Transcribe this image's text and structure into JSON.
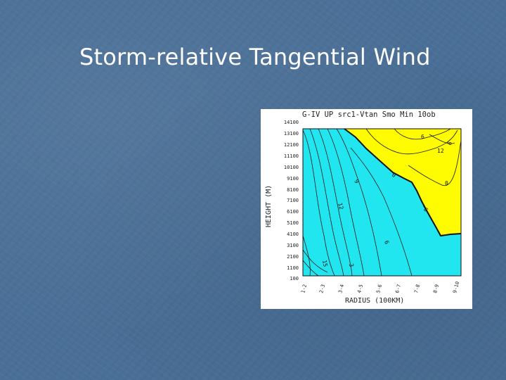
{
  "slide": {
    "title": "Storm-relative Tangential Wind"
  },
  "figure": {
    "header": "G-IV UP src1-Vtan Smo Min 10ob",
    "ylabel": "HEIGHT (M)",
    "xlabel": "RADIUS (100KM)",
    "y_ticks": [
      "14100",
      "13100",
      "12100",
      "11100",
      "10100",
      "9100",
      "8100",
      "7100",
      "6100",
      "5100",
      "4100",
      "3100",
      "2100",
      "1100",
      "100"
    ],
    "x_ticks": [
      "1-2",
      "2-3",
      "3-4",
      "4-5",
      "5-6",
      "6-7",
      "7-8",
      "8-9",
      "9-10"
    ],
    "contour_labels": [
      "15",
      "12",
      "9",
      "6",
      "3",
      "0",
      "-6",
      "6",
      "12",
      "6",
      "0"
    ],
    "colors": {
      "positive_fill": "#22e6ef",
      "negative_fill": "#fffb00",
      "contour": "#1a1a1a"
    }
  }
}
